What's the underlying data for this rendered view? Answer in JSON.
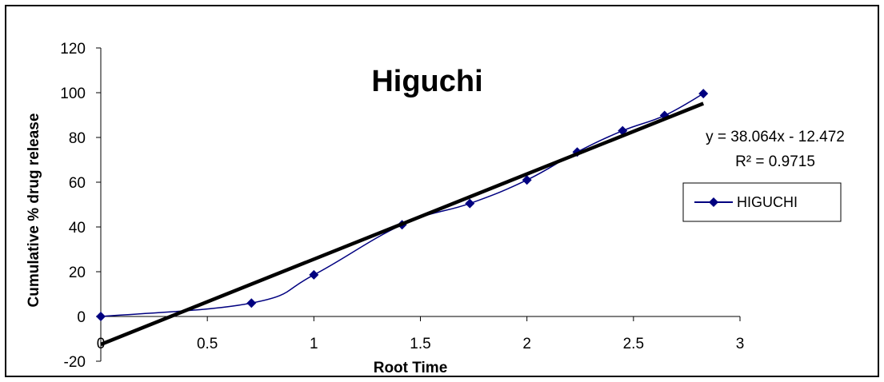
{
  "chart_data": {
    "type": "scatter",
    "title": "Higuchi",
    "xlabel": "Root Time",
    "ylabel": "Cumulative % drug release",
    "xlim": [
      0,
      3
    ],
    "ylim": [
      -20,
      120
    ],
    "x_ticks": [
      "0",
      "0.5",
      "1",
      "1.5",
      "2",
      "2.5",
      "3"
    ],
    "y_ticks": [
      "-20",
      "0",
      "20",
      "40",
      "60",
      "80",
      "100",
      "120"
    ],
    "grid": false,
    "legend_position": "right",
    "series": [
      {
        "name": "HIGUCHI",
        "color": "#000080",
        "marker": "diamond",
        "smooth": true,
        "x": [
          0,
          0.707,
          1,
          1.414,
          1.732,
          2,
          2.236,
          2.449,
          2.646,
          2.828
        ],
        "y": [
          0,
          6,
          18.6,
          41,
          50.5,
          61,
          73.5,
          83,
          89.8,
          99.6
        ]
      }
    ],
    "trendline": {
      "type": "linear",
      "color": "#000000",
      "x_range": [
        0,
        2.828
      ],
      "slope": 38.064,
      "intercept": -12.472,
      "equation_label": "y = 38.064x - 12.472",
      "r2_label": "R² = 0.9715"
    }
  }
}
